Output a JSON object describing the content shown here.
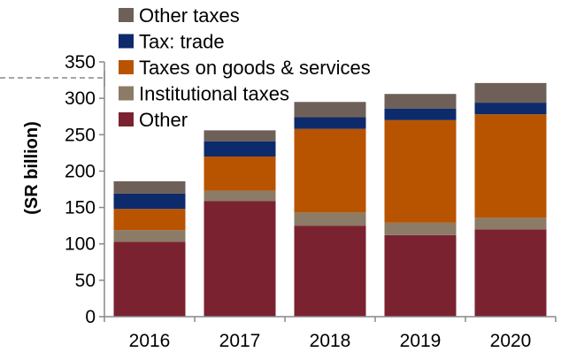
{
  "chart_data": {
    "type": "bar",
    "stacked": true,
    "title": "",
    "xlabel": "",
    "ylabel": "(SR billion)",
    "ylim": [
      0,
      350
    ],
    "yticks": [
      0,
      50,
      100,
      150,
      200,
      250,
      300,
      350
    ],
    "categories": [
      "2016",
      "2017",
      "2018",
      "2019",
      "2020"
    ],
    "series": [
      {
        "name": "Other",
        "color": "#7B2230",
        "values": [
          103,
          159,
          125,
          112,
          120
        ]
      },
      {
        "name": "Institutional taxes",
        "color": "#8C7B66",
        "values": [
          16,
          14,
          18,
          17,
          16
        ]
      },
      {
        "name": "Taxes on goods & services",
        "color": "#B85400",
        "values": [
          29,
          47,
          115,
          141,
          142
        ]
      },
      {
        "name": "Tax: trade",
        "color": "#0D2A6B",
        "values": [
          21,
          21,
          16,
          16,
          16
        ]
      },
      {
        "name": "Other taxes",
        "color": "#6E6058",
        "values": [
          17,
          15,
          21,
          20,
          27
        ]
      }
    ],
    "legend": {
      "placement": "top-left",
      "order": [
        "Other taxes",
        "Tax: trade",
        "Taxes on goods & services",
        "Institutional taxes",
        "Other"
      ]
    },
    "grid": false
  }
}
